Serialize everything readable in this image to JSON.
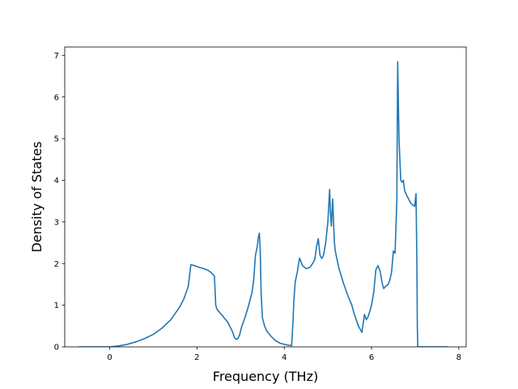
{
  "chart_data": {
    "type": "line",
    "title": "",
    "xlabel": "Frequency (THz)",
    "ylabel": "Density of States",
    "xlim": [
      -1.03,
      8.17
    ],
    "ylim": [
      0,
      7.2
    ],
    "xticks": [
      0,
      2,
      4,
      6,
      8
    ],
    "yticks": [
      0,
      1,
      2,
      3,
      4,
      5,
      6,
      7
    ],
    "grid": false,
    "legend": "none",
    "series": [
      {
        "color": "#1f77b4",
        "x": [
          -0.7,
          -0.3,
          0.0,
          0.2,
          0.4,
          0.6,
          0.8,
          1.0,
          1.2,
          1.4,
          1.6,
          1.7,
          1.8,
          1.86,
          1.95,
          2.05,
          2.15,
          2.25,
          2.33,
          2.4,
          2.43,
          2.46,
          2.5,
          2.56,
          2.62,
          2.7,
          2.76,
          2.82,
          2.86,
          2.9,
          2.94,
          2.98,
          3.02,
          3.1,
          3.18,
          3.26,
          3.3,
          3.34,
          3.38,
          3.41,
          3.43,
          3.45,
          3.47,
          3.5,
          3.55,
          3.6,
          3.7,
          3.8,
          3.9,
          4.0,
          4.1,
          4.17,
          4.2,
          4.22,
          4.25,
          4.3,
          4.35,
          4.42,
          4.5,
          4.58,
          4.65,
          4.7,
          4.74,
          4.78,
          4.82,
          4.86,
          4.9,
          4.95,
          5.0,
          5.04,
          5.06,
          5.08,
          5.11,
          5.13,
          5.15,
          5.17,
          5.25,
          5.35,
          5.45,
          5.55,
          5.6,
          5.7,
          5.78,
          5.8,
          5.84,
          5.88,
          5.92,
          5.96,
          6.0,
          6.05,
          6.1,
          6.15,
          6.2,
          6.25,
          6.28,
          6.32,
          6.38,
          6.42,
          6.46,
          6.5,
          6.54,
          6.58,
          6.6,
          6.63,
          6.65,
          6.67,
          6.7,
          6.73,
          6.76,
          6.8,
          6.85,
          6.9,
          6.95,
          6.99,
          7.02,
          7.04,
          7.05,
          7.06,
          7.08,
          7.2,
          7.5,
          7.76
        ],
        "values": [
          0.0,
          0.0,
          0.0,
          0.02,
          0.06,
          0.12,
          0.2,
          0.3,
          0.45,
          0.65,
          0.95,
          1.15,
          1.45,
          1.97,
          1.95,
          1.91,
          1.88,
          1.84,
          1.78,
          1.7,
          1.0,
          0.9,
          0.85,
          0.78,
          0.7,
          0.6,
          0.48,
          0.35,
          0.22,
          0.18,
          0.2,
          0.3,
          0.47,
          0.7,
          0.98,
          1.3,
          1.6,
          2.2,
          2.4,
          2.65,
          2.73,
          2.3,
          1.3,
          0.7,
          0.5,
          0.38,
          0.25,
          0.15,
          0.09,
          0.06,
          0.04,
          0.03,
          0.6,
          1.1,
          1.55,
          1.8,
          2.13,
          1.95,
          1.88,
          1.9,
          2.0,
          2.1,
          2.4,
          2.6,
          2.2,
          2.12,
          2.2,
          2.5,
          3.0,
          3.78,
          3.2,
          2.9,
          3.55,
          3.0,
          2.5,
          2.3,
          1.9,
          1.55,
          1.25,
          1.0,
          0.8,
          0.5,
          0.35,
          0.5,
          0.78,
          0.65,
          0.72,
          0.85,
          1.0,
          1.3,
          1.85,
          1.95,
          1.8,
          1.5,
          1.4,
          1.45,
          1.5,
          1.6,
          1.8,
          2.3,
          2.25,
          3.5,
          6.85,
          5.0,
          4.5,
          4.0,
          3.95,
          4.0,
          3.75,
          3.65,
          3.55,
          3.45,
          3.4,
          3.38,
          3.68,
          2.0,
          0.5,
          0.0,
          0.0,
          0.0,
          0.0,
          0.0
        ]
      }
    ]
  }
}
